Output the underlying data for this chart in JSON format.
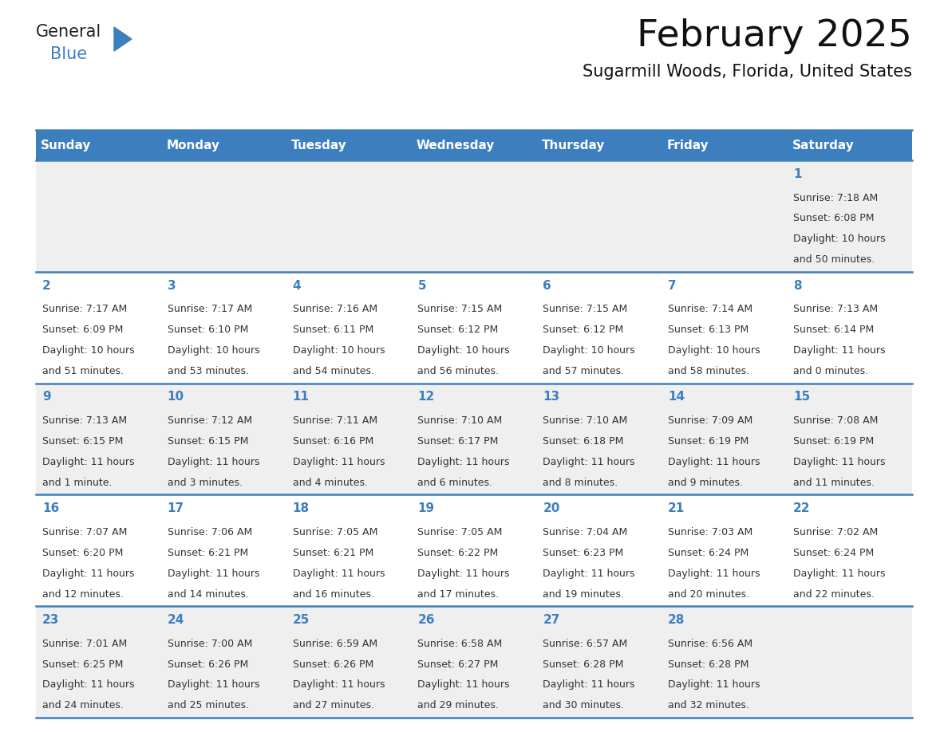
{
  "title": "February 2025",
  "subtitle": "Sugarmill Woods, Florida, United States",
  "header_bg": "#3d7ebf",
  "header_text_color": "#ffffff",
  "header_days": [
    "Sunday",
    "Monday",
    "Tuesday",
    "Wednesday",
    "Thursday",
    "Friday",
    "Saturday"
  ],
  "row_bg_light": "#efefef",
  "row_bg_white": "#ffffff",
  "cell_border_color": "#3d7ebf",
  "day_number_color": "#3d7ebf",
  "info_color": "#333333",
  "title_color": "#111111",
  "calendar_data": [
    [
      {
        "day": null,
        "sunrise": null,
        "sunset": null,
        "daylight": null
      },
      {
        "day": null,
        "sunrise": null,
        "sunset": null,
        "daylight": null
      },
      {
        "day": null,
        "sunrise": null,
        "sunset": null,
        "daylight": null
      },
      {
        "day": null,
        "sunrise": null,
        "sunset": null,
        "daylight": null
      },
      {
        "day": null,
        "sunrise": null,
        "sunset": null,
        "daylight": null
      },
      {
        "day": null,
        "sunrise": null,
        "sunset": null,
        "daylight": null
      },
      {
        "day": 1,
        "sunrise": "7:18 AM",
        "sunset": "6:08 PM",
        "daylight": "10 hours\nand 50 minutes."
      }
    ],
    [
      {
        "day": 2,
        "sunrise": "7:17 AM",
        "sunset": "6:09 PM",
        "daylight": "10 hours\nand 51 minutes."
      },
      {
        "day": 3,
        "sunrise": "7:17 AM",
        "sunset": "6:10 PM",
        "daylight": "10 hours\nand 53 minutes."
      },
      {
        "day": 4,
        "sunrise": "7:16 AM",
        "sunset": "6:11 PM",
        "daylight": "10 hours\nand 54 minutes."
      },
      {
        "day": 5,
        "sunrise": "7:15 AM",
        "sunset": "6:12 PM",
        "daylight": "10 hours\nand 56 minutes."
      },
      {
        "day": 6,
        "sunrise": "7:15 AM",
        "sunset": "6:12 PM",
        "daylight": "10 hours\nand 57 minutes."
      },
      {
        "day": 7,
        "sunrise": "7:14 AM",
        "sunset": "6:13 PM",
        "daylight": "10 hours\nand 58 minutes."
      },
      {
        "day": 8,
        "sunrise": "7:13 AM",
        "sunset": "6:14 PM",
        "daylight": "11 hours\nand 0 minutes."
      }
    ],
    [
      {
        "day": 9,
        "sunrise": "7:13 AM",
        "sunset": "6:15 PM",
        "daylight": "11 hours\nand 1 minute."
      },
      {
        "day": 10,
        "sunrise": "7:12 AM",
        "sunset": "6:15 PM",
        "daylight": "11 hours\nand 3 minutes."
      },
      {
        "day": 11,
        "sunrise": "7:11 AM",
        "sunset": "6:16 PM",
        "daylight": "11 hours\nand 4 minutes."
      },
      {
        "day": 12,
        "sunrise": "7:10 AM",
        "sunset": "6:17 PM",
        "daylight": "11 hours\nand 6 minutes."
      },
      {
        "day": 13,
        "sunrise": "7:10 AM",
        "sunset": "6:18 PM",
        "daylight": "11 hours\nand 8 minutes."
      },
      {
        "day": 14,
        "sunrise": "7:09 AM",
        "sunset": "6:19 PM",
        "daylight": "11 hours\nand 9 minutes."
      },
      {
        "day": 15,
        "sunrise": "7:08 AM",
        "sunset": "6:19 PM",
        "daylight": "11 hours\nand 11 minutes."
      }
    ],
    [
      {
        "day": 16,
        "sunrise": "7:07 AM",
        "sunset": "6:20 PM",
        "daylight": "11 hours\nand 12 minutes."
      },
      {
        "day": 17,
        "sunrise": "7:06 AM",
        "sunset": "6:21 PM",
        "daylight": "11 hours\nand 14 minutes."
      },
      {
        "day": 18,
        "sunrise": "7:05 AM",
        "sunset": "6:21 PM",
        "daylight": "11 hours\nand 16 minutes."
      },
      {
        "day": 19,
        "sunrise": "7:05 AM",
        "sunset": "6:22 PM",
        "daylight": "11 hours\nand 17 minutes."
      },
      {
        "day": 20,
        "sunrise": "7:04 AM",
        "sunset": "6:23 PM",
        "daylight": "11 hours\nand 19 minutes."
      },
      {
        "day": 21,
        "sunrise": "7:03 AM",
        "sunset": "6:24 PM",
        "daylight": "11 hours\nand 20 minutes."
      },
      {
        "day": 22,
        "sunrise": "7:02 AM",
        "sunset": "6:24 PM",
        "daylight": "11 hours\nand 22 minutes."
      }
    ],
    [
      {
        "day": 23,
        "sunrise": "7:01 AM",
        "sunset": "6:25 PM",
        "daylight": "11 hours\nand 24 minutes."
      },
      {
        "day": 24,
        "sunrise": "7:00 AM",
        "sunset": "6:26 PM",
        "daylight": "11 hours\nand 25 minutes."
      },
      {
        "day": 25,
        "sunrise": "6:59 AM",
        "sunset": "6:26 PM",
        "daylight": "11 hours\nand 27 minutes."
      },
      {
        "day": 26,
        "sunrise": "6:58 AM",
        "sunset": "6:27 PM",
        "daylight": "11 hours\nand 29 minutes."
      },
      {
        "day": 27,
        "sunrise": "6:57 AM",
        "sunset": "6:28 PM",
        "daylight": "11 hours\nand 30 minutes."
      },
      {
        "day": 28,
        "sunrise": "6:56 AM",
        "sunset": "6:28 PM",
        "daylight": "11 hours\nand 32 minutes."
      },
      {
        "day": null,
        "sunrise": null,
        "sunset": null,
        "daylight": null
      }
    ]
  ],
  "logo_text_general": "General",
  "logo_text_blue": "Blue",
  "logo_color_general": "#222222",
  "logo_color_blue": "#3d7ebf",
  "logo_triangle_color": "#3d7ebf",
  "fig_width": 11.88,
  "fig_height": 9.18,
  "dpi": 100
}
